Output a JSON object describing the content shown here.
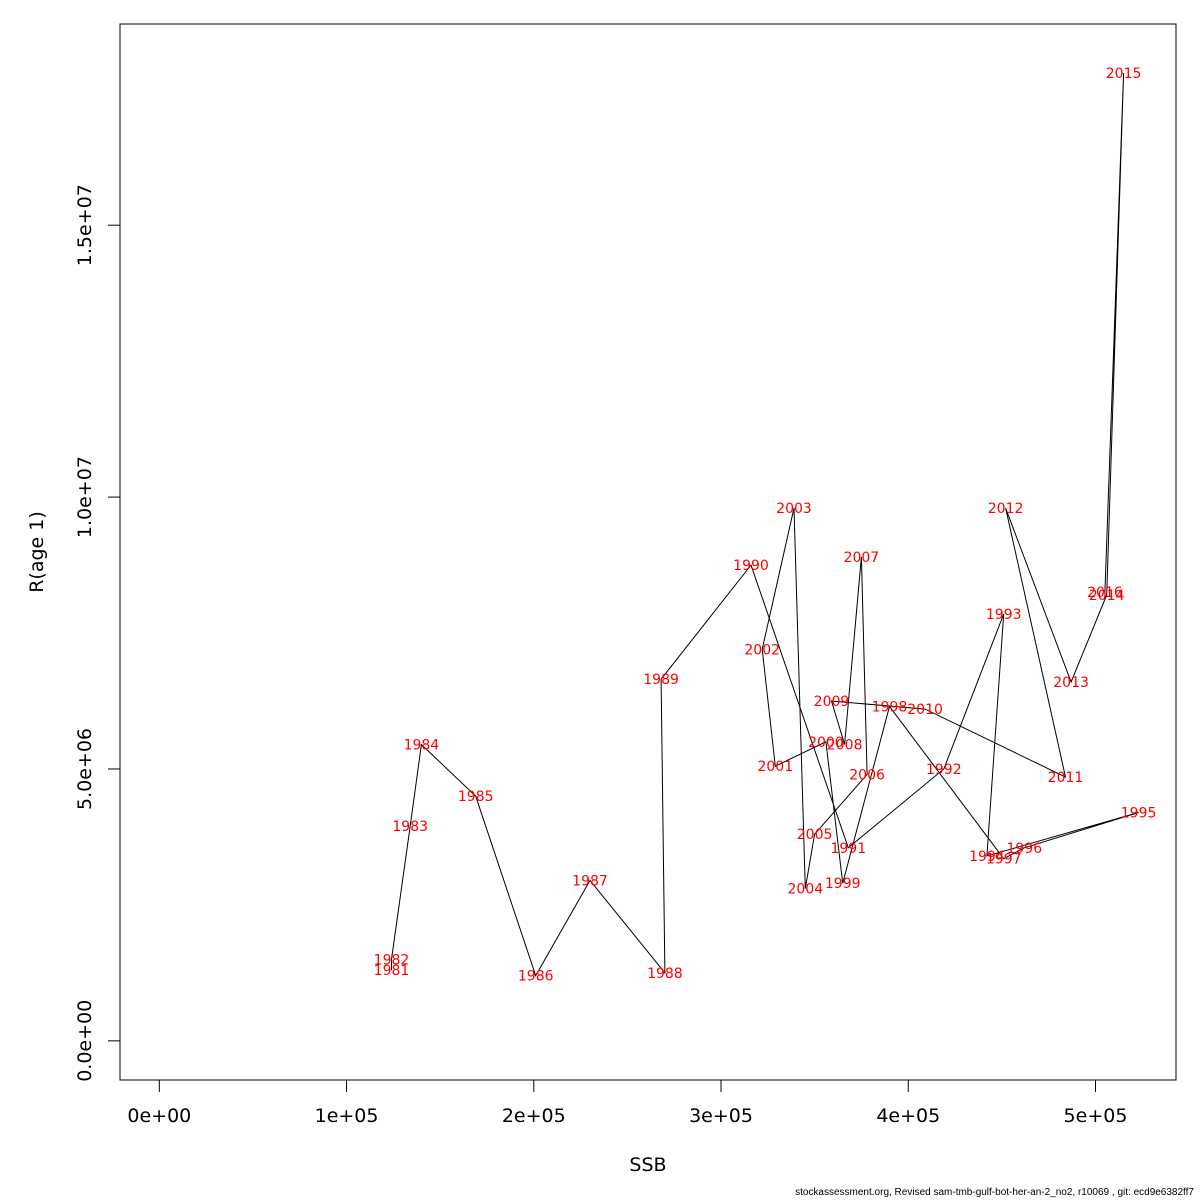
{
  "chart_data": {
    "type": "line",
    "xlabel": "SSB",
    "ylabel": "R(age 1)",
    "xlim": [
      -21000,
      543000
    ],
    "ylim": [
      -720000,
      18700000
    ],
    "x_ticks": [
      {
        "value": 0,
        "label": "0e+00"
      },
      {
        "value": 100000,
        "label": "1e+05"
      },
      {
        "value": 200000,
        "label": "2e+05"
      },
      {
        "value": 300000,
        "label": "3e+05"
      },
      {
        "value": 400000,
        "label": "4e+05"
      },
      {
        "value": 500000,
        "label": "5e+05"
      }
    ],
    "y_ticks": [
      {
        "value": 0,
        "label": "0.0e+00"
      },
      {
        "value": 5000000,
        "label": "5.0e+06"
      },
      {
        "value": 10000000,
        "label": "1.0e+07"
      },
      {
        "value": 15000000,
        "label": "1.5e+07"
      }
    ],
    "points": [
      {
        "label": "1981",
        "x": 124000,
        "y": 1300000
      },
      {
        "label": "1982",
        "x": 124000,
        "y": 1500000
      },
      {
        "label": "1983",
        "x": 134000,
        "y": 3950000
      },
      {
        "label": "1984",
        "x": 140000,
        "y": 5450000
      },
      {
        "label": "1985",
        "x": 169000,
        "y": 4500000
      },
      {
        "label": "1986",
        "x": 201000,
        "y": 1200000
      },
      {
        "label": "1987",
        "x": 230000,
        "y": 2950000
      },
      {
        "label": "1988",
        "x": 270000,
        "y": 1250000
      },
      {
        "label": "1989",
        "x": 268000,
        "y": 6650000
      },
      {
        "label": "1990",
        "x": 316000,
        "y": 8750000
      },
      {
        "label": "1991",
        "x": 368000,
        "y": 3550000
      },
      {
        "label": "1992",
        "x": 419000,
        "y": 5000000
      },
      {
        "label": "1993",
        "x": 451000,
        "y": 7850000
      },
      {
        "label": "1994",
        "x": 442000,
        "y": 3400000
      },
      {
        "label": "1995",
        "x": 523000,
        "y": 4200000
      },
      {
        "label": "1996",
        "x": 462000,
        "y": 3550000
      },
      {
        "label": "1997",
        "x": 451000,
        "y": 3350000
      },
      {
        "label": "1998",
        "x": 390000,
        "y": 6150000
      },
      {
        "label": "1999",
        "x": 365000,
        "y": 2900000
      },
      {
        "label": "2000",
        "x": 356000,
        "y": 5500000
      },
      {
        "label": "2001",
        "x": 329000,
        "y": 5050000
      },
      {
        "label": "2002",
        "x": 322000,
        "y": 7200000
      },
      {
        "label": "2003",
        "x": 339000,
        "y": 9800000
      },
      {
        "label": "2004",
        "x": 345000,
        "y": 2800000
      },
      {
        "label": "2005",
        "x": 350000,
        "y": 3800000
      },
      {
        "label": "2006",
        "x": 378000,
        "y": 4900000
      },
      {
        "label": "2007",
        "x": 375000,
        "y": 8900000
      },
      {
        "label": "2008",
        "x": 366000,
        "y": 5450000
      },
      {
        "label": "2009",
        "x": 359000,
        "y": 6250000
      },
      {
        "label": "2010",
        "x": 409000,
        "y": 6100000
      },
      {
        "label": "2011",
        "x": 484000,
        "y": 4850000
      },
      {
        "label": "2012",
        "x": 452000,
        "y": 9800000
      },
      {
        "label": "2013",
        "x": 487000,
        "y": 6600000
      },
      {
        "label": "2014",
        "x": 506000,
        "y": 8200000
      },
      {
        "label": "2015",
        "x": 515000,
        "y": 17800000
      },
      {
        "label": "2016",
        "x": 505000,
        "y": 8250000
      }
    ]
  },
  "footer": "stockassessment.org, Revised sam-tmb-gulf-bot-her-an-2_no2, r10069 , git: ecd9e6382ff7"
}
